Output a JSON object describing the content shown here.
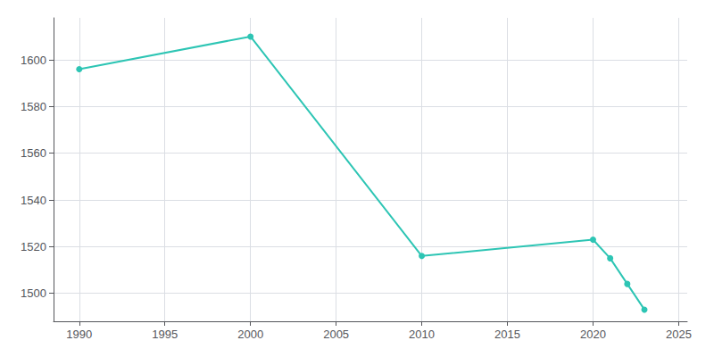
{
  "chart_data": {
    "type": "line",
    "x": [
      1990,
      2000,
      2010,
      2020,
      2021,
      2022,
      2023
    ],
    "values": [
      1596,
      1610,
      1516,
      1523,
      1515,
      1504,
      1493
    ],
    "color": "#2dc5b4",
    "marker": "circle",
    "xlim": [
      1988.5,
      2025.5
    ],
    "ylim": [
      1488,
      1618
    ],
    "xticks": [
      1990,
      1995,
      2000,
      2005,
      2010,
      2015,
      2020,
      2025
    ],
    "yticks": [
      1500,
      1520,
      1540,
      1560,
      1580,
      1600
    ],
    "grid": true
  }
}
